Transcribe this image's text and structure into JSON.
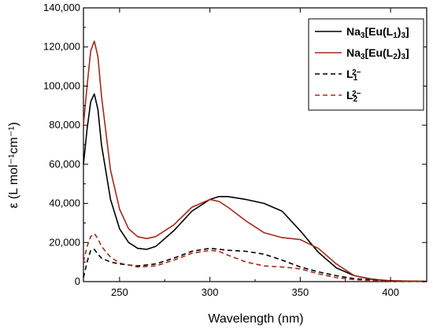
{
  "chart_data": {
    "type": "line",
    "xlabel": "Wavelength (nm)",
    "ylabel": "ε (L mol⁻¹cm⁻¹)",
    "xlim": [
      230,
      420
    ],
    "ylim": [
      0,
      140000
    ],
    "x_ticks": [
      250,
      300,
      350,
      400
    ],
    "x_tick_labels": [
      "250",
      "300",
      "350",
      "400"
    ],
    "y_ticks": [
      0,
      20000,
      40000,
      60000,
      80000,
      100000,
      120000,
      140000
    ],
    "y_tick_labels": [
      "0",
      "20,000",
      "40,000",
      "60,000",
      "80,000",
      "100,000",
      "120,000",
      "140,000"
    ],
    "grid": false,
    "legend_position": "top-right",
    "series": [
      {
        "name": "Na3[Eu(L1)3]",
        "color": "#000000",
        "dash": "solid",
        "x": [
          230,
          232,
          234,
          236,
          238,
          240,
          245,
          250,
          255,
          260,
          265,
          270,
          280,
          290,
          300,
          305,
          310,
          320,
          330,
          340,
          350,
          360,
          370,
          380,
          390,
          400,
          410,
          420
        ],
        "y": [
          60000,
          78000,
          92000,
          96000,
          88000,
          70000,
          42000,
          27000,
          20000,
          17000,
          16500,
          18000,
          26000,
          36000,
          42000,
          43500,
          43500,
          42000,
          40000,
          36000,
          26000,
          15000,
          7000,
          3000,
          1200,
          400,
          200,
          100
        ]
      },
      {
        "name": "Na3[Eu(L2)3]",
        "color": "#a52a1a",
        "dash": "solid",
        "x": [
          230,
          232,
          234,
          236,
          238,
          240,
          245,
          250,
          255,
          260,
          265,
          270,
          280,
          290,
          300,
          305,
          310,
          320,
          330,
          340,
          350,
          360,
          370,
          380,
          390,
          400,
          410,
          420
        ],
        "y": [
          80000,
          100000,
          118000,
          123000,
          115000,
          95000,
          57000,
          37000,
          27000,
          23000,
          22000,
          23000,
          29000,
          38000,
          42000,
          41000,
          38000,
          31000,
          25000,
          22500,
          21500,
          17000,
          9000,
          3000,
          1000,
          500,
          300,
          200
        ]
      },
      {
        "name": "L1 2−",
        "color": "#000000",
        "dash": "dashed",
        "x": [
          230,
          232,
          234,
          236,
          238,
          240,
          245,
          250,
          260,
          270,
          280,
          290,
          300,
          305,
          310,
          320,
          330,
          340,
          350,
          360,
          370,
          380,
          390,
          400,
          420
        ],
        "y": [
          2000,
          10000,
          16000,
          16500,
          14000,
          12000,
          10000,
          9000,
          8000,
          9000,
          12000,
          15500,
          17000,
          16500,
          16000,
          15500,
          14000,
          11000,
          7500,
          5000,
          3000,
          1500,
          800,
          300,
          100
        ]
      },
      {
        "name": "L2 2−",
        "color": "#a52a1a",
        "dash": "dashed",
        "x": [
          230,
          232,
          234,
          236,
          238,
          240,
          245,
          250,
          260,
          270,
          280,
          290,
          300,
          305,
          310,
          320,
          330,
          340,
          350,
          360,
          370,
          380,
          390,
          400,
          420
        ],
        "y": [
          10000,
          18000,
          23000,
          24500,
          22000,
          18000,
          12500,
          9500,
          7500,
          8000,
          11000,
          14500,
          16000,
          15500,
          13500,
          10000,
          8000,
          7500,
          6500,
          4000,
          2000,
          1000,
          500,
          200,
          100
        ]
      }
    ],
    "legend": [
      {
        "base": "Na",
        "parts": [
          {
            "t": "Na"
          },
          {
            "t": "3",
            "s": "sub"
          },
          {
            "t": "[Eu(L"
          },
          {
            "t": "1",
            "s": "sub"
          },
          {
            "t": ")"
          },
          {
            "t": "3",
            "s": "sub"
          },
          {
            "t": "]"
          }
        ]
      },
      {
        "base": "Na",
        "parts": [
          {
            "t": "Na"
          },
          {
            "t": "3",
            "s": "sub"
          },
          {
            "t": "[Eu(L"
          },
          {
            "t": "2",
            "s": "sub"
          },
          {
            "t": ")"
          },
          {
            "t": "3",
            "s": "sub"
          },
          {
            "t": "]"
          }
        ]
      },
      {
        "base": "L",
        "parts": [
          {
            "t": "L"
          },
          {
            "t": "1",
            "s": "sub"
          },
          {
            "t": "2−",
            "s": "sup"
          }
        ]
      },
      {
        "base": "L",
        "parts": [
          {
            "t": "L"
          },
          {
            "t": "2",
            "s": "sub"
          },
          {
            "t": "2−",
            "s": "sup"
          }
        ]
      }
    ]
  }
}
